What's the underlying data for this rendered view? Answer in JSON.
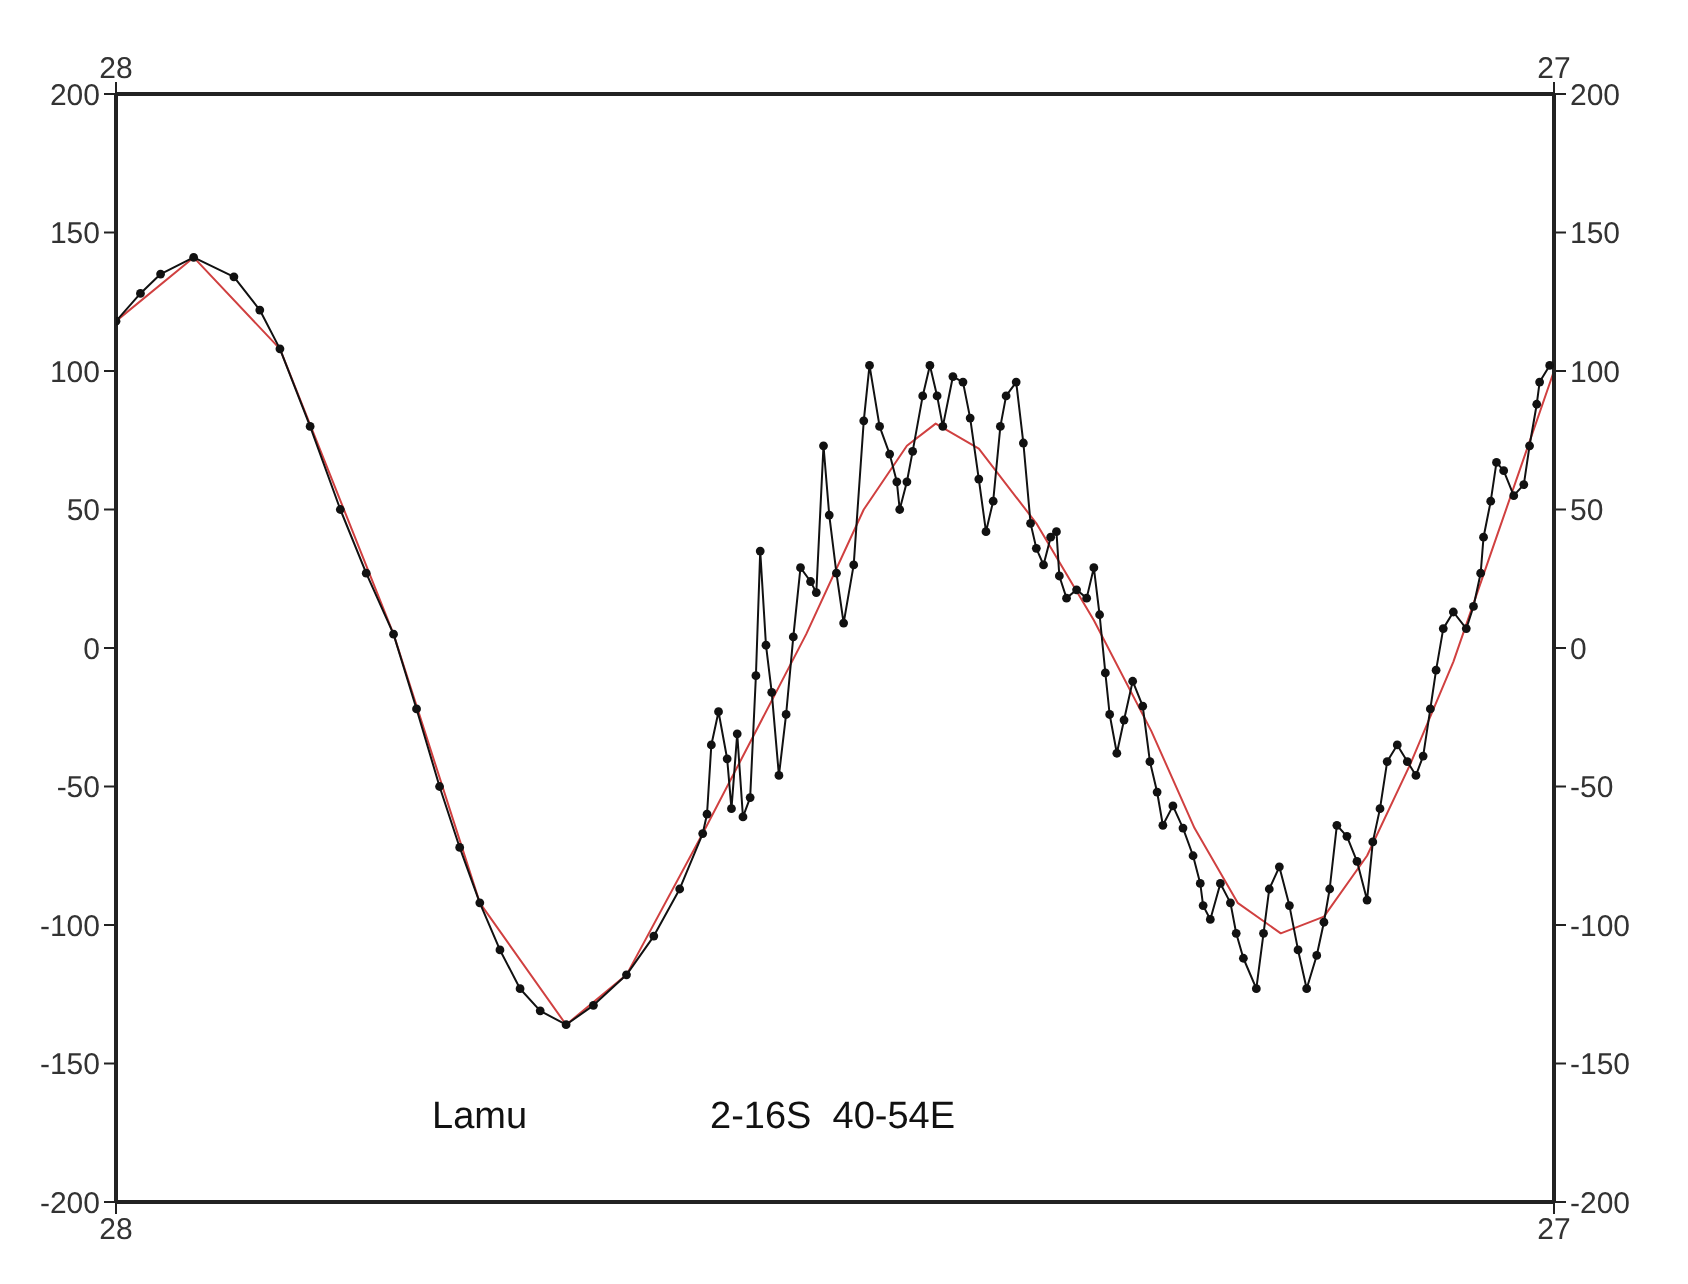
{
  "chart_data": {
    "type": "line",
    "annotations": [
      "Lamu",
      "2-16S  40-54E"
    ],
    "xlim": [
      28,
      27
    ],
    "xticks": [
      28,
      27
    ],
    "x2lim": [
      28,
      27
    ],
    "x2ticks": [
      28,
      27
    ],
    "ylim": [
      -200,
      200
    ],
    "yticks": [
      -200,
      -150,
      -100,
      -50,
      0,
      50,
      100,
      150,
      200
    ],
    "y2lim": [
      -200,
      200
    ],
    "y2ticks": [
      -200,
      -150,
      -100,
      -50,
      0,
      50,
      100,
      150,
      200
    ],
    "line_style": "solid",
    "series": [
      {
        "color": "#111111",
        "marker": "circle",
        "x": [
          28.0,
          27.983,
          27.969,
          27.946,
          27.918,
          27.9,
          27.886,
          27.865,
          27.844,
          27.826,
          27.807,
          27.791,
          27.775,
          27.761,
          27.747,
          27.733,
          27.719,
          27.705,
          27.687,
          27.668,
          27.645,
          27.626,
          27.608,
          27.592,
          27.589,
          27.586,
          27.581,
          27.575,
          27.572,
          27.568,
          27.564,
          27.559,
          27.555,
          27.552,
          27.548,
          27.544,
          27.539,
          27.534,
          27.529,
          27.524,
          27.517,
          27.513,
          27.508,
          27.504,
          27.499,
          27.494,
          27.487,
          27.48,
          27.476,
          27.469,
          27.462,
          27.457,
          27.455,
          27.45,
          27.446,
          27.439,
          27.434,
          27.429,
          27.425,
          27.418,
          27.411,
          27.406,
          27.4,
          27.395,
          27.39,
          27.385,
          27.381,
          27.374,
          27.369,
          27.364,
          27.36,
          27.355,
          27.35,
          27.346,
          27.344,
          27.339,
          27.332,
          27.325,
          27.32,
          27.316,
          27.312,
          27.309,
          27.304,
          27.299,
          27.293,
          27.286,
          27.281,
          27.276,
          27.272,
          27.265,
          27.258,
          27.251,
          27.246,
          27.244,
          27.239,
          27.232,
          27.225,
          27.221,
          27.216,
          27.207,
          27.202,
          27.198,
          27.191,
          27.184,
          27.178,
          27.172,
          27.165,
          27.16,
          27.156,
          27.151,
          27.144,
          27.137,
          27.13,
          27.126,
          27.121,
          27.116,
          27.109,
          27.102,
          27.096,
          27.091,
          27.086,
          27.082,
          27.077,
          27.07,
          27.061,
          27.056,
          27.051,
          27.049,
          27.044,
          27.04,
          27.035,
          27.028,
          27.021,
          27.017,
          27.012,
          27.01,
          27.003
        ],
        "values": [
          118,
          128,
          135,
          141,
          134,
          122,
          108,
          80,
          50,
          27,
          5,
          -22,
          -50,
          -72,
          -92,
          -109,
          -123,
          -131,
          -136,
          -129,
          -118,
          -104,
          -87,
          -67,
          -60,
          -35,
          -23,
          -40,
          -58,
          -31,
          -61,
          -54,
          -10,
          35,
          1,
          -16,
          -46,
          -24,
          4,
          29,
          24,
          20,
          73,
          48,
          27,
          9,
          30,
          82,
          102,
          80,
          70,
          60,
          50,
          60,
          71,
          91,
          102,
          91,
          80,
          98,
          96,
          83,
          61,
          42,
          53,
          80,
          91,
          96,
          74,
          45,
          36,
          30,
          40,
          42,
          26,
          18,
          21,
          18,
          29,
          12,
          -9,
          -24,
          -38,
          -26,
          -12,
          -21,
          -41,
          -52,
          -64,
          -57,
          -65,
          -75,
          -85,
          -93,
          -98,
          -85,
          -92,
          -103,
          -112,
          -123,
          -103,
          -87,
          -79,
          -93,
          -109,
          -123,
          -111,
          -99,
          -87,
          -64,
          -68,
          -77,
          -91,
          -70,
          -58,
          -41,
          -35,
          -41,
          -46,
          -39,
          -22,
          -8,
          7,
          13,
          7,
          15,
          27,
          40,
          53,
          67,
          64,
          55,
          59,
          73,
          88,
          96,
          102
        ]
      },
      {
        "color": "#d04040",
        "marker": "none",
        "x": [
          28.0,
          27.946,
          27.886,
          27.807,
          27.747,
          27.687,
          27.645,
          27.592,
          27.56,
          27.52,
          27.48,
          27.45,
          27.43,
          27.4,
          27.36,
          27.32,
          27.28,
          27.25,
          27.22,
          27.19,
          27.16,
          27.13,
          27.1,
          27.07,
          27.04,
          27.02,
          27.0
        ],
        "values": [
          118,
          141,
          108,
          5,
          -92,
          -136,
          -118,
          -67,
          -35,
          5,
          50,
          73,
          81,
          72,
          45,
          10,
          -30,
          -65,
          -92,
          -103,
          -97,
          -75,
          -42,
          -5,
          40,
          70,
          100
        ]
      }
    ]
  }
}
